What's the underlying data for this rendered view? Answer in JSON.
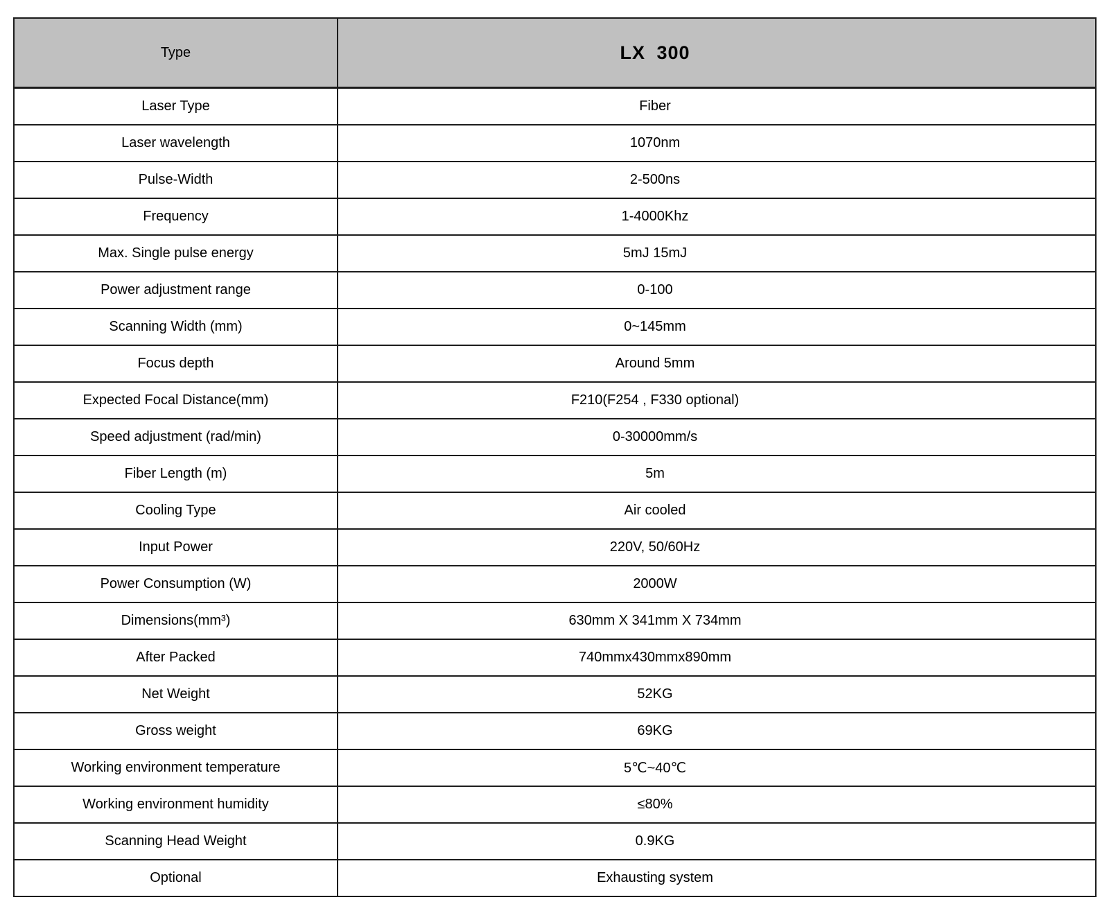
{
  "table": {
    "header": {
      "type_label": "Type",
      "model": "LX 300"
    },
    "rows": [
      {
        "label": "Laser Type",
        "value": "Fiber"
      },
      {
        "label": "Laser wavelength",
        "value": "1070nm"
      },
      {
        "label": "Pulse-Width",
        "value": "2-500ns"
      },
      {
        "label": "Frequency",
        "value": "1-4000Khz"
      },
      {
        "label": "Max. Single pulse energy",
        "value": "5mJ 15mJ"
      },
      {
        "label": "Power adjustment range",
        "value": "0-100"
      },
      {
        "label": "Scanning Width (mm)",
        "value": "0~145mm"
      },
      {
        "label": "Focus depth",
        "value": "Around 5mm"
      },
      {
        "label": "Expected Focal Distance(mm)",
        "value": "F210(F254 , F330 optional)"
      },
      {
        "label": "Speed adjustment (rad/min)",
        "value": "0-30000mm/s"
      },
      {
        "label": "Fiber Length (m)",
        "value": "5m"
      },
      {
        "label": "Cooling Type",
        "value": "Air cooled"
      },
      {
        "label": "Input Power",
        "value": "220V, 50/60Hz"
      },
      {
        "label": "Power Consumption (W)",
        "value": "2000W"
      },
      {
        "label": "Dimensions(mm³)",
        "value": "630mm X 341mm X 734mm"
      },
      {
        "label": "After Packed",
        "value": "740mmx430mmx890mm"
      },
      {
        "label": "Net Weight",
        "value": "52KG"
      },
      {
        "label": "Gross weight",
        "value": "69KG"
      },
      {
        "label": "Working environment temperature",
        "value": "5℃~40℃"
      },
      {
        "label": "Working environment humidity",
        "value": "≤80%"
      },
      {
        "label": "Scanning Head Weight",
        "value": "0.9KG"
      },
      {
        "label": "Optional",
        "value": "Exhausting system"
      }
    ],
    "colors": {
      "header_bg": "#c0c0c0",
      "border": "#1c1c1c",
      "text": "#000000"
    }
  }
}
